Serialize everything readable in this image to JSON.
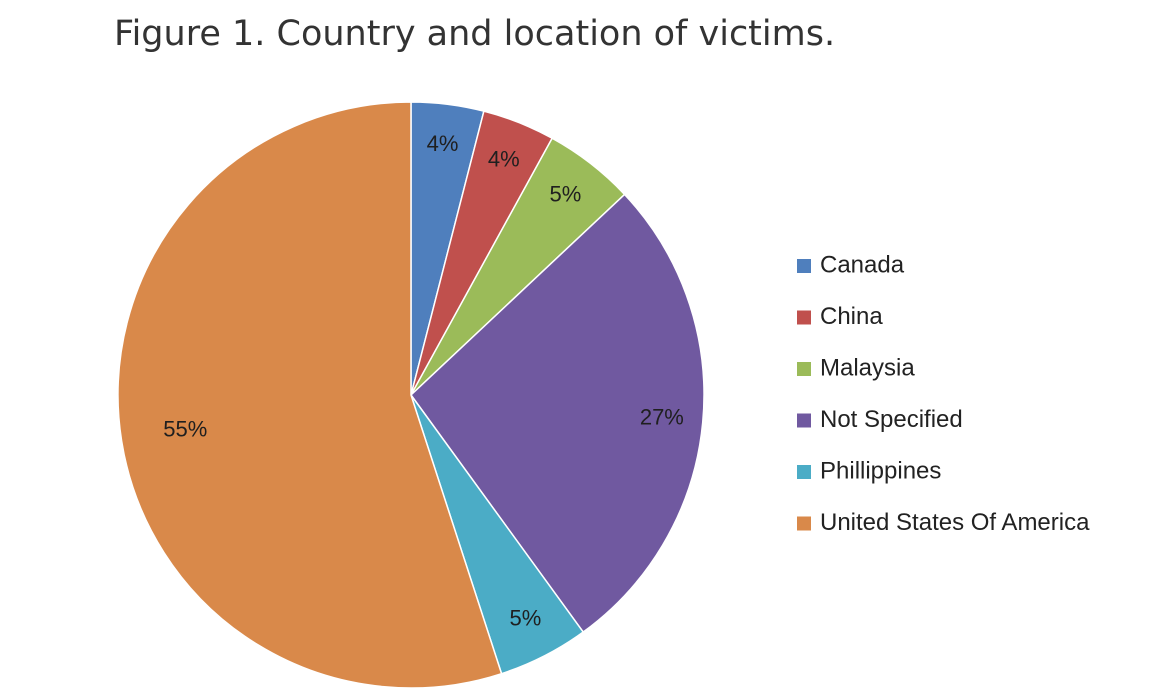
{
  "figure": {
    "title": "Figure 1. Country and location of victims."
  },
  "chart_data": {
    "type": "pie",
    "title": "",
    "start_angle_deg": 0,
    "direction": "clockwise",
    "legend_position": "right",
    "slices": [
      {
        "label": "Canada",
        "value": 4,
        "display": "4%",
        "color": "#4f7fbd"
      },
      {
        "label": "China",
        "value": 4,
        "display": "4%",
        "color": "#c0504d"
      },
      {
        "label": "Malaysia",
        "value": 5,
        "display": "5%",
        "color": "#9bbb59"
      },
      {
        "label": "Not Specified",
        "value": 27,
        "display": "27%",
        "color": "#7059a0"
      },
      {
        "label": "Phillippines",
        "value": 5,
        "display": "5%",
        "color": "#4bacc6"
      },
      {
        "label": "United States Of America",
        "value": 55,
        "display": "55%",
        "color": "#d9894a"
      }
    ]
  }
}
